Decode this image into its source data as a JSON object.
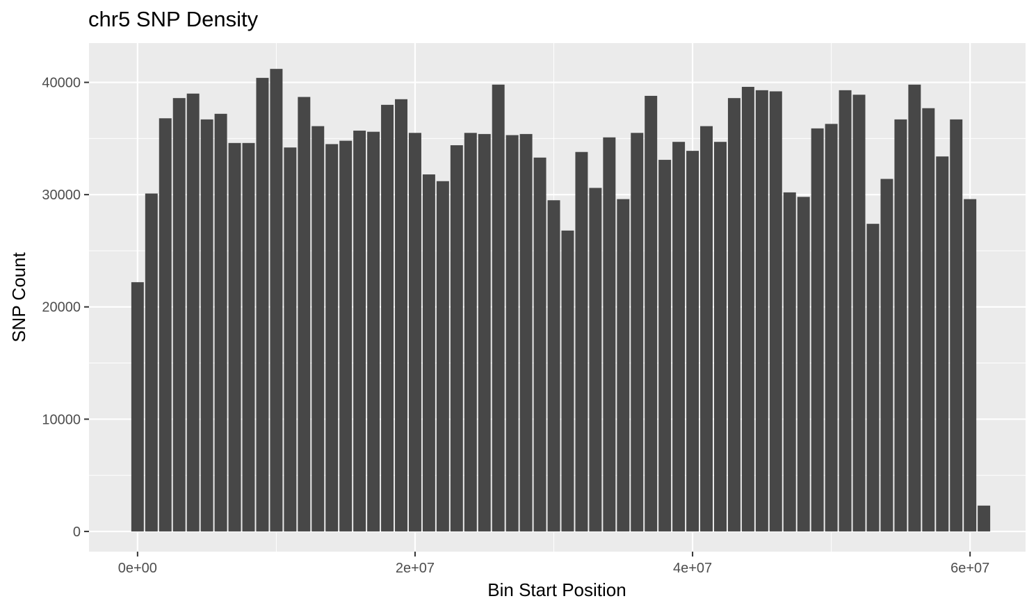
{
  "chart_data": {
    "type": "bar",
    "title": "chr5 SNP Density",
    "xlabel": "Bin Start Position",
    "ylabel": "SNP Count",
    "xlim": [
      -3500000,
      64000000
    ],
    "ylim": [
      -1800,
      43500
    ],
    "x_ticks": [
      {
        "value": 0,
        "label": "0e+00"
      },
      {
        "value": 20000000,
        "label": "2e+07"
      },
      {
        "value": 40000000,
        "label": "4e+07"
      },
      {
        "value": 60000000,
        "label": "6e+07"
      }
    ],
    "x_minor_ticks": [
      10000000,
      30000000,
      50000000
    ],
    "y_ticks": [
      {
        "value": 0,
        "label": "0"
      },
      {
        "value": 10000,
        "label": "10000"
      },
      {
        "value": 20000,
        "label": "20000"
      },
      {
        "value": 30000,
        "label": "30000"
      },
      {
        "value": 40000,
        "label": "40000"
      }
    ],
    "y_minor_ticks": [
      5000,
      15000,
      25000,
      35000
    ],
    "grid": true,
    "bin_width": 1000000,
    "x": [
      0,
      1000000,
      2000000,
      3000000,
      4000000,
      5000000,
      6000000,
      7000000,
      8000000,
      9000000,
      10000000,
      11000000,
      12000000,
      13000000,
      14000000,
      15000000,
      16000000,
      17000000,
      18000000,
      19000000,
      20000000,
      21000000,
      22000000,
      23000000,
      24000000,
      25000000,
      26000000,
      27000000,
      28000000,
      29000000,
      30000000,
      31000000,
      32000000,
      33000000,
      34000000,
      35000000,
      36000000,
      37000000,
      38000000,
      39000000,
      40000000,
      41000000,
      42000000,
      43000000,
      44000000,
      45000000,
      46000000,
      47000000,
      48000000,
      49000000,
      50000000,
      51000000,
      52000000,
      53000000,
      54000000,
      55000000,
      56000000,
      57000000,
      58000000,
      59000000,
      60000000,
      61000000
    ],
    "values": [
      22200,
      30100,
      36800,
      38600,
      39000,
      36700,
      37200,
      34600,
      34600,
      40400,
      41200,
      34200,
      38700,
      36100,
      34500,
      34800,
      35700,
      35600,
      38000,
      38500,
      35500,
      31800,
      31200,
      34400,
      35500,
      35400,
      39800,
      35300,
      35400,
      33300,
      29500,
      26800,
      33800,
      30600,
      35100,
      29600,
      35500,
      38800,
      33100,
      34700,
      33900,
      36100,
      34700,
      38600,
      39600,
      39300,
      39200,
      30200,
      29800,
      35900,
      36300,
      39300,
      38900,
      27400,
      31400,
      36700,
      39800,
      37700,
      33400,
      36700,
      29600,
      2300
    ],
    "colors": {
      "panel": "#ebebeb",
      "grid_major": "#ffffff",
      "bar": "#474747",
      "bar_border": "#ffffff",
      "tick": "#333333"
    }
  }
}
